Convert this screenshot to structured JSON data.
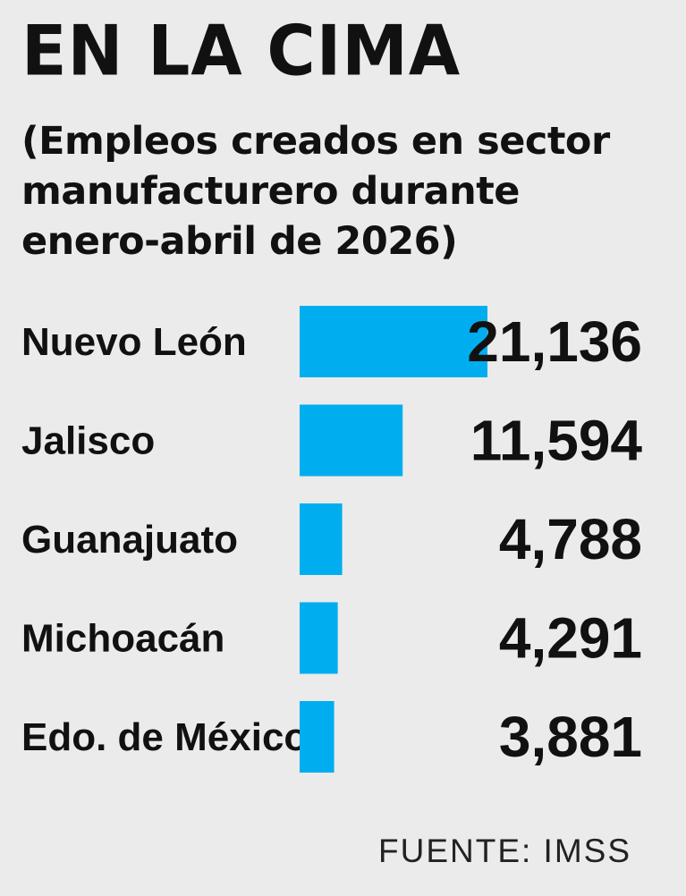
{
  "title": "EN LA CIMA",
  "subtitle_lines": [
    "(Empleos creados en sector",
    "manufacturero durante",
    "enero-abril de 2026)"
  ],
  "source": "FUENTE: IMSS",
  "colors": {
    "bar": "#00aeef",
    "background": "#ebebeb",
    "text": "#111111"
  },
  "chart_data": {
    "type": "bar",
    "orientation": "horizontal",
    "title": "EN LA CIMA",
    "subtitle": "(Empleos creados en sector manufacturero durante enero-abril de 2026)",
    "categories": [
      "Nuevo León",
      "Jalisco",
      "Guanajuato",
      "Michoacán",
      "Edo. de México"
    ],
    "values": [
      21136,
      11594,
      4788,
      4291,
      3881
    ],
    "value_labels": [
      "21,136",
      "11,594",
      "4,788",
      "4,291",
      "3,881"
    ],
    "xlim": [
      0,
      21136
    ],
    "grid": false,
    "legend": "none"
  }
}
